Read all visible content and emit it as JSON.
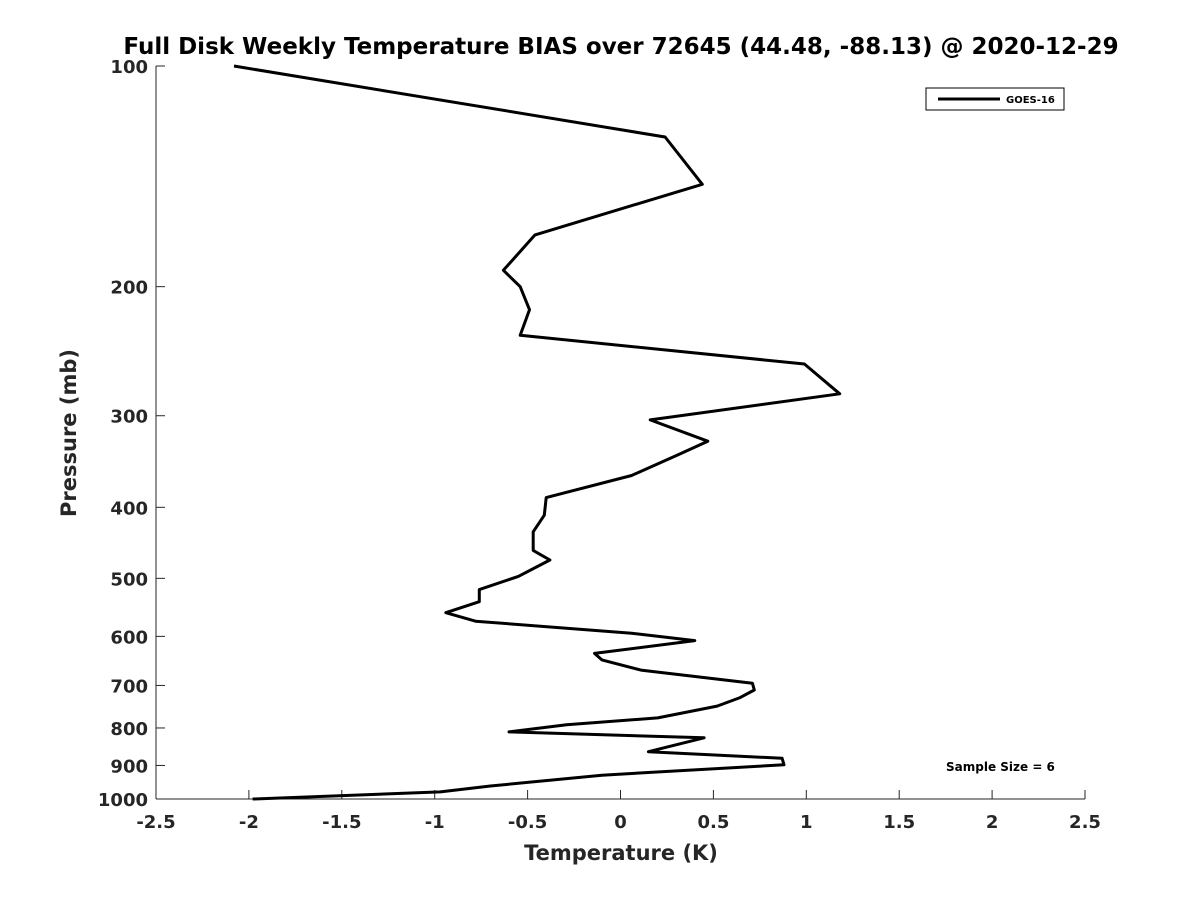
{
  "chart_data": {
    "type": "line",
    "title": "Full Disk Weekly Temperature BIAS over 72645 (44.48, -88.13) @ 2020-12-29",
    "xlabel": "Temperature (K)",
    "ylabel": "Pressure (mb)",
    "xlim": [
      -2.5,
      2.5
    ],
    "ylim": [
      100,
      1000
    ],
    "y_scale": "log",
    "y_reversed": true,
    "grid": false,
    "legend_position": "top-right",
    "x_ticks": [
      "-2.5",
      "-2",
      "-1.5",
      "-1",
      "-0.5",
      "0",
      "0.5",
      "1",
      "1.5",
      "2",
      "2.5"
    ],
    "y_ticks": [
      "100",
      "200",
      "300",
      "400",
      "500",
      "600",
      "700",
      "800",
      "900",
      "1000"
    ],
    "series": [
      {
        "name": "GOES-16",
        "color": "#000000",
        "points": [
          [
            -2.08,
            100
          ],
          [
            0.24,
            125
          ],
          [
            0.44,
            145
          ],
          [
            -0.46,
            170
          ],
          [
            -0.63,
            190
          ],
          [
            -0.54,
            200
          ],
          [
            -0.49,
            215
          ],
          [
            -0.54,
            233
          ],
          [
            0.99,
            255
          ],
          [
            1.18,
            280
          ],
          [
            0.16,
            304
          ],
          [
            0.47,
            325
          ],
          [
            0.3,
            340
          ],
          [
            0.06,
            362
          ],
          [
            -0.4,
            388
          ],
          [
            -0.41,
            410
          ],
          [
            -0.47,
            432
          ],
          [
            -0.47,
            458
          ],
          [
            -0.38,
            472
          ],
          [
            -0.55,
            497
          ],
          [
            -0.76,
            518
          ],
          [
            -0.76,
            538
          ],
          [
            -0.94,
            557
          ],
          [
            -0.78,
            572
          ],
          [
            0.06,
            594
          ],
          [
            0.4,
            608
          ],
          [
            -0.14,
            633
          ],
          [
            -0.1,
            646
          ],
          [
            0.11,
            667
          ],
          [
            0.71,
            695
          ],
          [
            0.72,
            710
          ],
          [
            0.64,
            728
          ],
          [
            0.52,
            747
          ],
          [
            0.2,
            775
          ],
          [
            -0.29,
            792
          ],
          [
            -0.6,
            810
          ],
          [
            0.45,
            825
          ],
          [
            0.15,
            862
          ],
          [
            0.87,
            880
          ],
          [
            0.88,
            898
          ],
          [
            -0.1,
            928
          ],
          [
            -0.7,
            960
          ],
          [
            -0.97,
            978
          ],
          [
            -1.98,
            1000
          ]
        ]
      }
    ],
    "annotation": "Sample Size = 6"
  }
}
